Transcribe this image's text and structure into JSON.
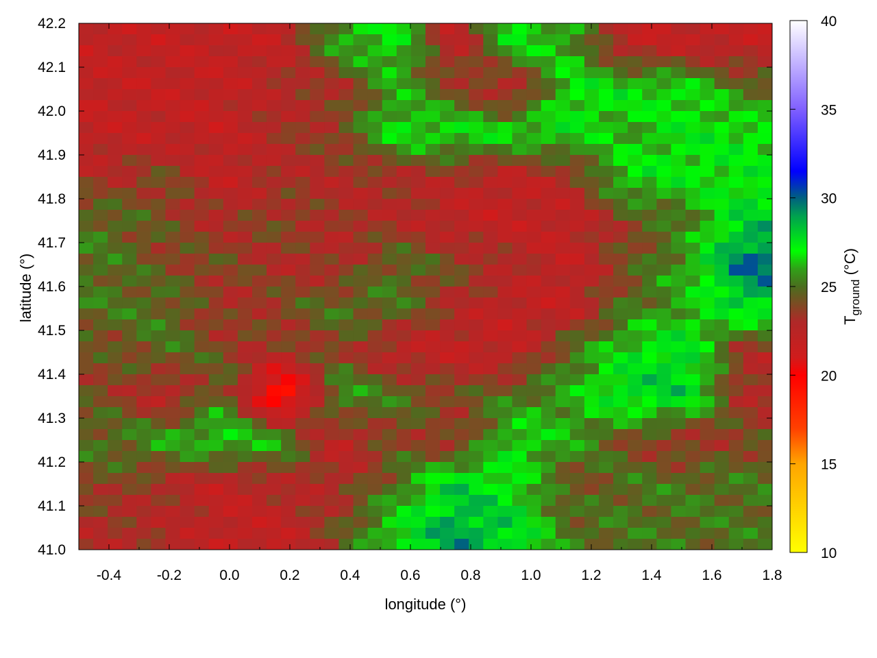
{
  "chart_data": {
    "type": "heatmap",
    "xlabel": "longitude (°)",
    "ylabel": "latitude (°)",
    "colorbar_label": {
      "main": "T",
      "subscript": "ground",
      "unit": " (°C)"
    },
    "xlim": [
      -0.5,
      1.8
    ],
    "ylim": [
      41.0,
      42.2
    ],
    "clim": [
      10,
      40
    ],
    "x_ticks": [
      "-0.4",
      "-0.2",
      "0.0",
      "0.2",
      "0.4",
      "0.6",
      "0.8",
      "1.0",
      "1.2",
      "1.4",
      "1.6",
      "1.8"
    ],
    "y_ticks": [
      "41.0",
      "41.1",
      "41.2",
      "41.3",
      "41.4",
      "41.5",
      "41.6",
      "41.7",
      "41.8",
      "41.9",
      "42.0",
      "42.1",
      "42.2"
    ],
    "colorbar_ticks": [
      "10",
      "15",
      "20",
      "25",
      "30",
      "35",
      "40"
    ],
    "colormap": [
      {
        "value": 10,
        "color": "#ffff00"
      },
      {
        "value": 15,
        "color": "#ffa500"
      },
      {
        "value": 17,
        "color": "#ff4000"
      },
      {
        "value": 20,
        "color": "#ff0000"
      },
      {
        "value": 21,
        "color": "#d01c1c"
      },
      {
        "value": 23,
        "color": "#b02828"
      },
      {
        "value": 25,
        "color": "#4a6e1e"
      },
      {
        "value": 26,
        "color": "#30a018"
      },
      {
        "value": 27,
        "color": "#00ff00"
      },
      {
        "value": 29,
        "color": "#00a050"
      },
      {
        "value": 30,
        "color": "#006080"
      },
      {
        "value": 31.5,
        "color": "#0000ff"
      },
      {
        "value": 35,
        "color": "#8060ff"
      },
      {
        "value": 40,
        "color": "#ffffff"
      }
    ],
    "grid_lon": [
      -0.4,
      -0.2,
      0.0,
      0.2,
      0.4,
      0.6,
      0.8,
      1.0,
      1.2,
      1.4,
      1.6,
      1.75
    ],
    "grid_lat": [
      42.15,
      42.05,
      41.95,
      41.85,
      41.75,
      41.65,
      41.55,
      41.45,
      41.35,
      41.25,
      41.15,
      41.05
    ],
    "values": [
      [
        22,
        22,
        22,
        22,
        26,
        27,
        22,
        27,
        26,
        22,
        22,
        22
      ],
      [
        22,
        22,
        22,
        23,
        23,
        26,
        24,
        22,
        27,
        27,
        27,
        25
      ],
      [
        22,
        22,
        22,
        23,
        24,
        27,
        27,
        27,
        27,
        26,
        27,
        27
      ],
      [
        23,
        24,
        22,
        23,
        23,
        23,
        23,
        22,
        23,
        27,
        27,
        27
      ],
      [
        25,
        24,
        23,
        24,
        23,
        23,
        22,
        22,
        22,
        24,
        25,
        28
      ],
      [
        25,
        24,
        24,
        23,
        23,
        25,
        24,
        23,
        22,
        24,
        26,
        30
      ],
      [
        25,
        25,
        23,
        24,
        25,
        25,
        23,
        22,
        22,
        25,
        26,
        28
      ],
      [
        24,
        25,
        24,
        23,
        24,
        22,
        22,
        22,
        25,
        27,
        28,
        23
      ],
      [
        24,
        22,
        25,
        18,
        26,
        25,
        24,
        25,
        26,
        28,
        28,
        23
      ],
      [
        25,
        26,
        27,
        26,
        22,
        24,
        23,
        27,
        26,
        24,
        23,
        24
      ],
      [
        24,
        23,
        22,
        23,
        23,
        25,
        28,
        27,
        24,
        25,
        25,
        25
      ],
      [
        23,
        23,
        22,
        22,
        24,
        27,
        29,
        28,
        25,
        25,
        25,
        25
      ]
    ]
  }
}
